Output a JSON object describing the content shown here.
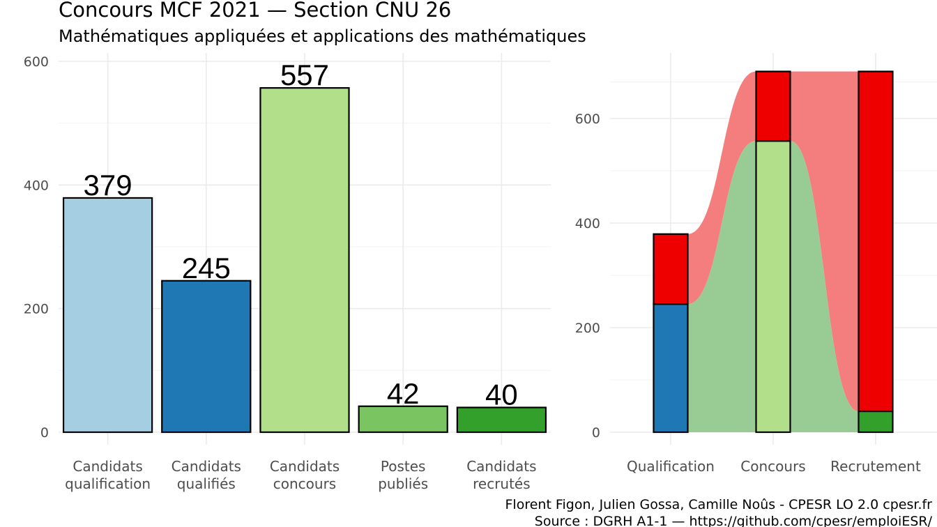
{
  "title": "Concours MCF  2021  —  Section CNU 26",
  "subtitle": "Mathématiques appliquées et applications des mathématiques",
  "caption": {
    "line1": "Florent Figon, Julien Gossa, Camille Noûs - CPESR LO 2.0 cpesr.fr",
    "line2": "Source : DGRH A1-1 — https://github.com/cpesr/emploiESR/"
  },
  "chart_data": [
    {
      "type": "bar",
      "categories": [
        [
          "Candidats",
          "qualification"
        ],
        [
          "Candidats",
          "qualifiés"
        ],
        [
          "Candidats",
          "concours"
        ],
        [
          "Postes",
          "publiés"
        ],
        [
          "Candidats",
          "recrutés"
        ]
      ],
      "values": [
        379,
        245,
        557,
        42,
        40
      ],
      "data_labels": [
        "379",
        "245",
        "557",
        "42",
        "40"
      ],
      "colors": [
        "#a6cee3",
        "#1f78b4",
        "#b2df8a",
        "#7bc462",
        "#33a02c"
      ],
      "ylim": [
        0,
        600
      ],
      "yticks": [
        0,
        200,
        400,
        600
      ],
      "grid": true,
      "legend": "none"
    },
    {
      "type": "bar",
      "stacked": true,
      "categories": [
        "Qualification",
        "Concours",
        "Recrutement"
      ],
      "series": [
        {
          "values": [
            245,
            557,
            40
          ],
          "colors": [
            "#1f78b4",
            "#b2df8a",
            "#33a02c"
          ]
        },
        {
          "values": [
            134,
            133,
            650
          ],
          "color": "#ee0000"
        }
      ],
      "flows": {
        "green_color": "#99cc94",
        "red_color": "#f47e7e"
      },
      "ylim": [
        0,
        690
      ],
      "yticks": [
        0,
        200,
        400,
        600
      ],
      "grid": true,
      "legend": "none"
    }
  ]
}
